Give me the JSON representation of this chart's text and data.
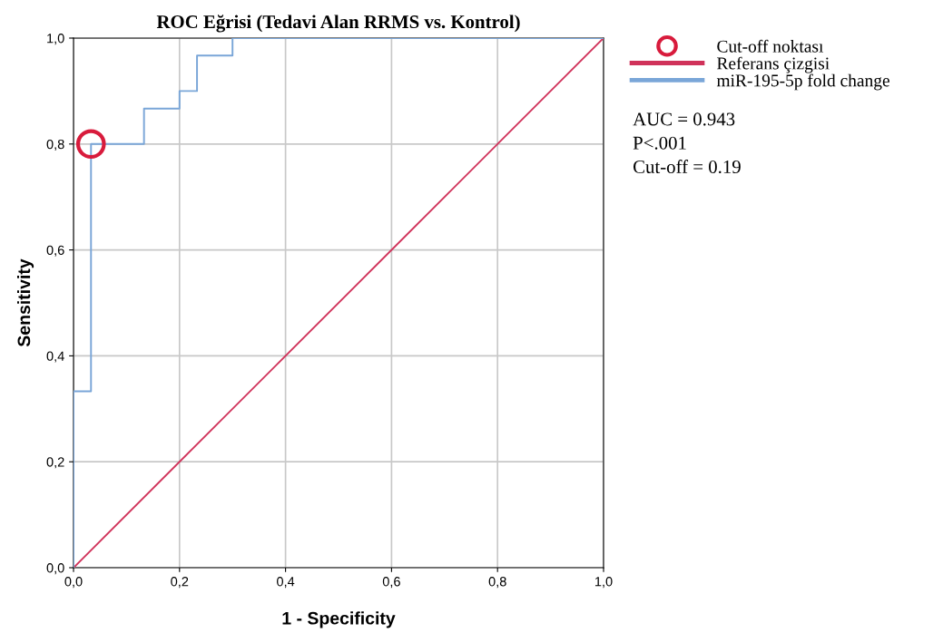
{
  "chart_data": {
    "type": "line",
    "title": "ROC Eğrisi (Tedavi Alan RRMS vs. Kontrol)",
    "xlabel": "1 - Specificity",
    "ylabel": "Sensitivity",
    "series": [
      {
        "name": "Cut-off noktası",
        "type": "scatter",
        "marker": "circle",
        "color": "#d81b3c",
        "x": [
          0.033
        ],
        "values": [
          0.8
        ]
      },
      {
        "name": "Referans çizgisi",
        "color": "#d0325a",
        "x": [
          0,
          1
        ],
        "values": [
          0,
          1
        ]
      },
      {
        "name": "miR-195-5p fold change",
        "color": "#7aa6d8",
        "x": [
          0,
          0,
          0.033,
          0.033,
          0.133,
          0.133,
          0.2,
          0.2,
          0.233,
          0.233,
          0.3,
          0.3,
          1
        ],
        "values": [
          0,
          0.333,
          0.333,
          0.8,
          0.8,
          0.867,
          0.867,
          0.9,
          0.9,
          0.967,
          0.967,
          1,
          1
        ]
      }
    ],
    "xlim": [
      0,
      1
    ],
    "ylim": [
      0,
      1
    ],
    "xticks": [
      {
        "value": 0,
        "label": "0,0"
      },
      {
        "value": 0.2,
        "label": "0,2"
      },
      {
        "value": 0.4,
        "label": "0,4"
      },
      {
        "value": 0.6,
        "label": "0,6"
      },
      {
        "value": 0.8,
        "label": "0,8"
      },
      {
        "value": 1,
        "label": "1,0"
      }
    ],
    "yticks": [
      {
        "value": 0,
        "label": "0,0"
      },
      {
        "value": 0.2,
        "label": "0,2"
      },
      {
        "value": 0.4,
        "label": "0,4"
      },
      {
        "value": 0.6,
        "label": "0,6"
      },
      {
        "value": 0.8,
        "label": "0,8"
      },
      {
        "value": 1,
        "label": "1,0"
      }
    ],
    "grid": true,
    "legend": "top right",
    "annotations": [
      "AUC = 0.943",
      "P<.001",
      "Cut-off = 0.19"
    ]
  }
}
